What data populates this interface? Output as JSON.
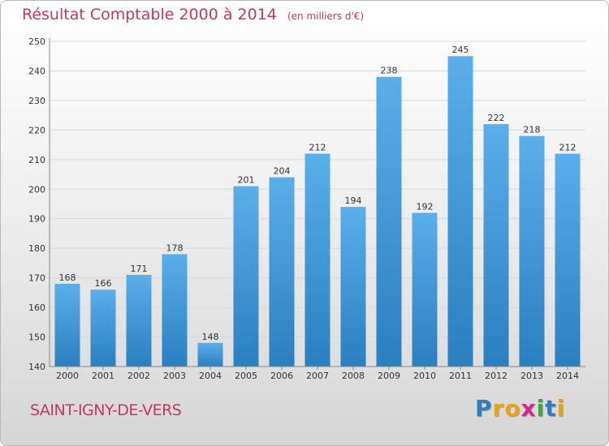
{
  "header": {
    "title": "Résultat Comptable 2000 à 2014",
    "subtitle": "(en milliers d'€)"
  },
  "footer": {
    "commune": "SAINT-IGNY-DE-VERS",
    "logo_text": "Proxiti",
    "logo_letters": [
      {
        "ch": "P",
        "color": "#2f7fc0"
      },
      {
        "ch": "r",
        "color": "#e6a21a"
      },
      {
        "ch": "o",
        "color": "#e6a21a"
      },
      {
        "ch": "x",
        "color": "#d02a8a"
      },
      {
        "ch": "i",
        "color": "#3aaa35"
      },
      {
        "ch": "t",
        "color": "#2f7fc0"
      },
      {
        "ch": "i",
        "color": "#e6a21a"
      }
    ]
  },
  "colors": {
    "bar_top": "#5aaeea",
    "bar_bottom": "#2a7fc0",
    "title": "#c0395f",
    "grid": "#d8d8d8"
  },
  "chart_data": {
    "type": "bar",
    "categories": [
      "2000",
      "2001",
      "2002",
      "2003",
      "2004",
      "2005",
      "2006",
      "2007",
      "2008",
      "2009",
      "2010",
      "2011",
      "2012",
      "2013",
      "2014"
    ],
    "values": [
      168,
      166,
      171,
      178,
      148,
      201,
      204,
      212,
      194,
      238,
      192,
      245,
      222,
      218,
      212
    ],
    "yticks": [
      140,
      150,
      160,
      170,
      180,
      190,
      200,
      210,
      220,
      230,
      240,
      250
    ],
    "ylim": [
      140,
      250
    ],
    "grid": true,
    "legend": "none"
  }
}
